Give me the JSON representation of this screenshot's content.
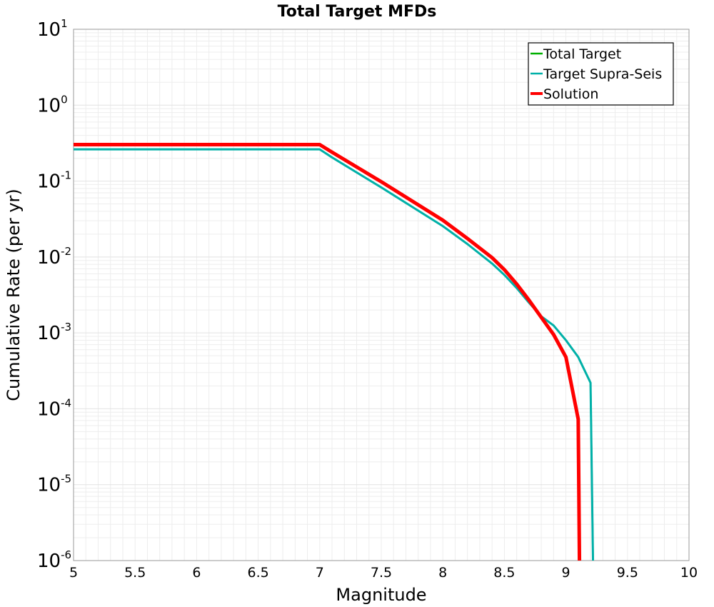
{
  "chart_data": {
    "type": "line",
    "title": "Total Target MFDs",
    "xlabel": "Magnitude",
    "ylabel": "Cumulative Rate (per yr)",
    "xlim": [
      5,
      10
    ],
    "ylim": [
      1e-06,
      10
    ],
    "yscale": "log",
    "grid": true,
    "legend_position": "top-right",
    "x_ticks": [
      "5",
      "5.5",
      "6",
      "6.5",
      "7",
      "7.5",
      "8",
      "8.5",
      "9",
      "9.5",
      "10"
    ],
    "y_ticks": [
      {
        "base": "10",
        "exp": "-6"
      },
      {
        "base": "10",
        "exp": "-5"
      },
      {
        "base": "10",
        "exp": "-4"
      },
      {
        "base": "10",
        "exp": "-3"
      },
      {
        "base": "10",
        "exp": "-2"
      },
      {
        "base": "10",
        "exp": "-1"
      },
      {
        "base": "10",
        "exp": "0"
      },
      {
        "base": "10",
        "exp": "1"
      }
    ],
    "series": [
      {
        "name": "Total Target",
        "color": "#00b000",
        "width": 2.5,
        "points": [
          [
            5,
            0.262
          ],
          [
            7.0,
            0.262
          ],
          [
            7.1,
            0.205
          ],
          [
            7.5,
            0.0825
          ],
          [
            8.0,
            0.0255
          ],
          [
            8.2,
            0.0148
          ],
          [
            8.4,
            0.0082
          ],
          [
            8.5,
            0.0058
          ],
          [
            8.6,
            0.0039
          ],
          [
            8.7,
            0.0025
          ],
          [
            8.8,
            0.00165
          ],
          [
            8.9,
            0.00125
          ],
          [
            9.0,
            0.0008
          ],
          [
            9.1,
            0.00048
          ],
          [
            9.2,
            0.00022
          ],
          [
            9.22,
            1e-06
          ]
        ]
      },
      {
        "name": "Target Supra-Seis",
        "color": "#00b0a8",
        "width": 3,
        "points": [
          [
            5,
            0.262
          ],
          [
            7.0,
            0.262
          ],
          [
            7.1,
            0.205
          ],
          [
            7.5,
            0.0825
          ],
          [
            8.0,
            0.0255
          ],
          [
            8.2,
            0.0148
          ],
          [
            8.4,
            0.0082
          ],
          [
            8.5,
            0.0058
          ],
          [
            8.6,
            0.0039
          ],
          [
            8.7,
            0.0025
          ],
          [
            8.8,
            0.00165
          ],
          [
            8.9,
            0.00125
          ],
          [
            9.0,
            0.0008
          ],
          [
            9.1,
            0.00048
          ],
          [
            9.2,
            0.00022
          ],
          [
            9.22,
            1e-06
          ]
        ]
      },
      {
        "name": "Solution",
        "color": "#ff0000",
        "width": 5,
        "points": [
          [
            5,
            0.302
          ],
          [
            7.0,
            0.302
          ],
          [
            7.1,
            0.24
          ],
          [
            7.5,
            0.098
          ],
          [
            8.0,
            0.0305
          ],
          [
            8.2,
            0.0175
          ],
          [
            8.4,
            0.0098
          ],
          [
            8.5,
            0.0068
          ],
          [
            8.6,
            0.0044
          ],
          [
            8.7,
            0.0027
          ],
          [
            8.8,
            0.0016
          ],
          [
            8.9,
            0.00095
          ],
          [
            9.0,
            0.00048
          ],
          [
            9.1,
            7.3e-05
          ],
          [
            9.11,
            1e-06
          ]
        ]
      }
    ]
  }
}
